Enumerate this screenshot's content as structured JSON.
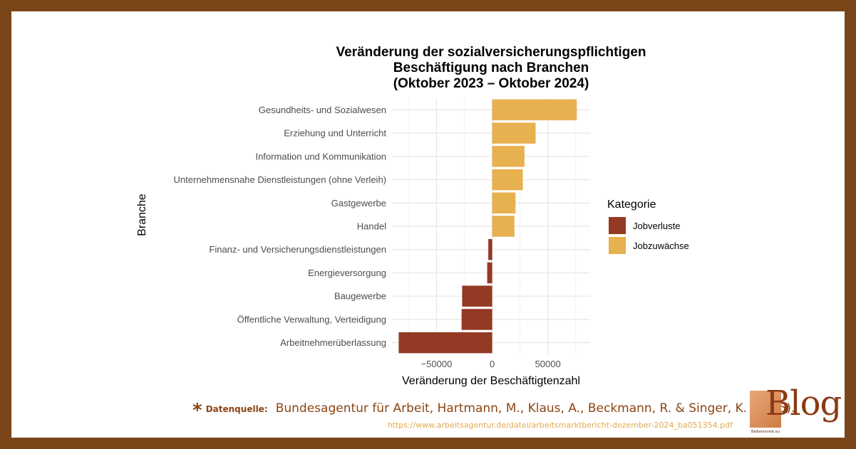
{
  "chart_data": {
    "type": "bar",
    "orientation": "horizontal",
    "title": "Veränderung der sozialversicherungspflichtigen\nBeschäftigung nach Branchen\n(Oktober 2023 – Oktober 2024)",
    "xlabel": "Veränderung der Beschäftigtenzahl",
    "ylabel": "Branche",
    "xlim": [
      -90000,
      88000
    ],
    "xticks": [
      -50000,
      0,
      50000
    ],
    "grid": true,
    "legend": {
      "title": "Kategorie",
      "position": "right",
      "entries": [
        {
          "label": "Jobverluste",
          "color": "#943924"
        },
        {
          "label": "Jobzuwächse",
          "color": "#e7b14f"
        }
      ]
    },
    "categories": [
      "Gesundheits- und Sozialwesen",
      "Erziehung und Unterricht",
      "Information und Kommunikation",
      "Unternehmensnahe Dienstleistungen (ohne Verleih)",
      "Gastgewerbe",
      "Handel",
      "Finanz- und Versicherungsdienstleistungen",
      "Energieversorgung",
      "Baugewerbe",
      "Öffentliche Verwaltung, Verteidigung",
      "Arbeitnehmerüberlassung"
    ],
    "values": [
      76000,
      39000,
      29000,
      27500,
      21000,
      20000,
      -3500,
      -4500,
      -27000,
      -27500,
      -84000
    ]
  },
  "footer": {
    "star": "*",
    "source_label": "Datenquelle:",
    "source_text": "Bundesagentur für Arbeit, Hartmann, M., Klaus, A., Beckmann, R. & Singer, K. (2025).",
    "url": "https://www.arbeitsagentur.de/datei/arbeitsmarktbericht-dezember-2024_ba051354.pdf"
  },
  "logo": {
    "word": "Blog",
    "tagline": "Balkaninvest.eu"
  }
}
